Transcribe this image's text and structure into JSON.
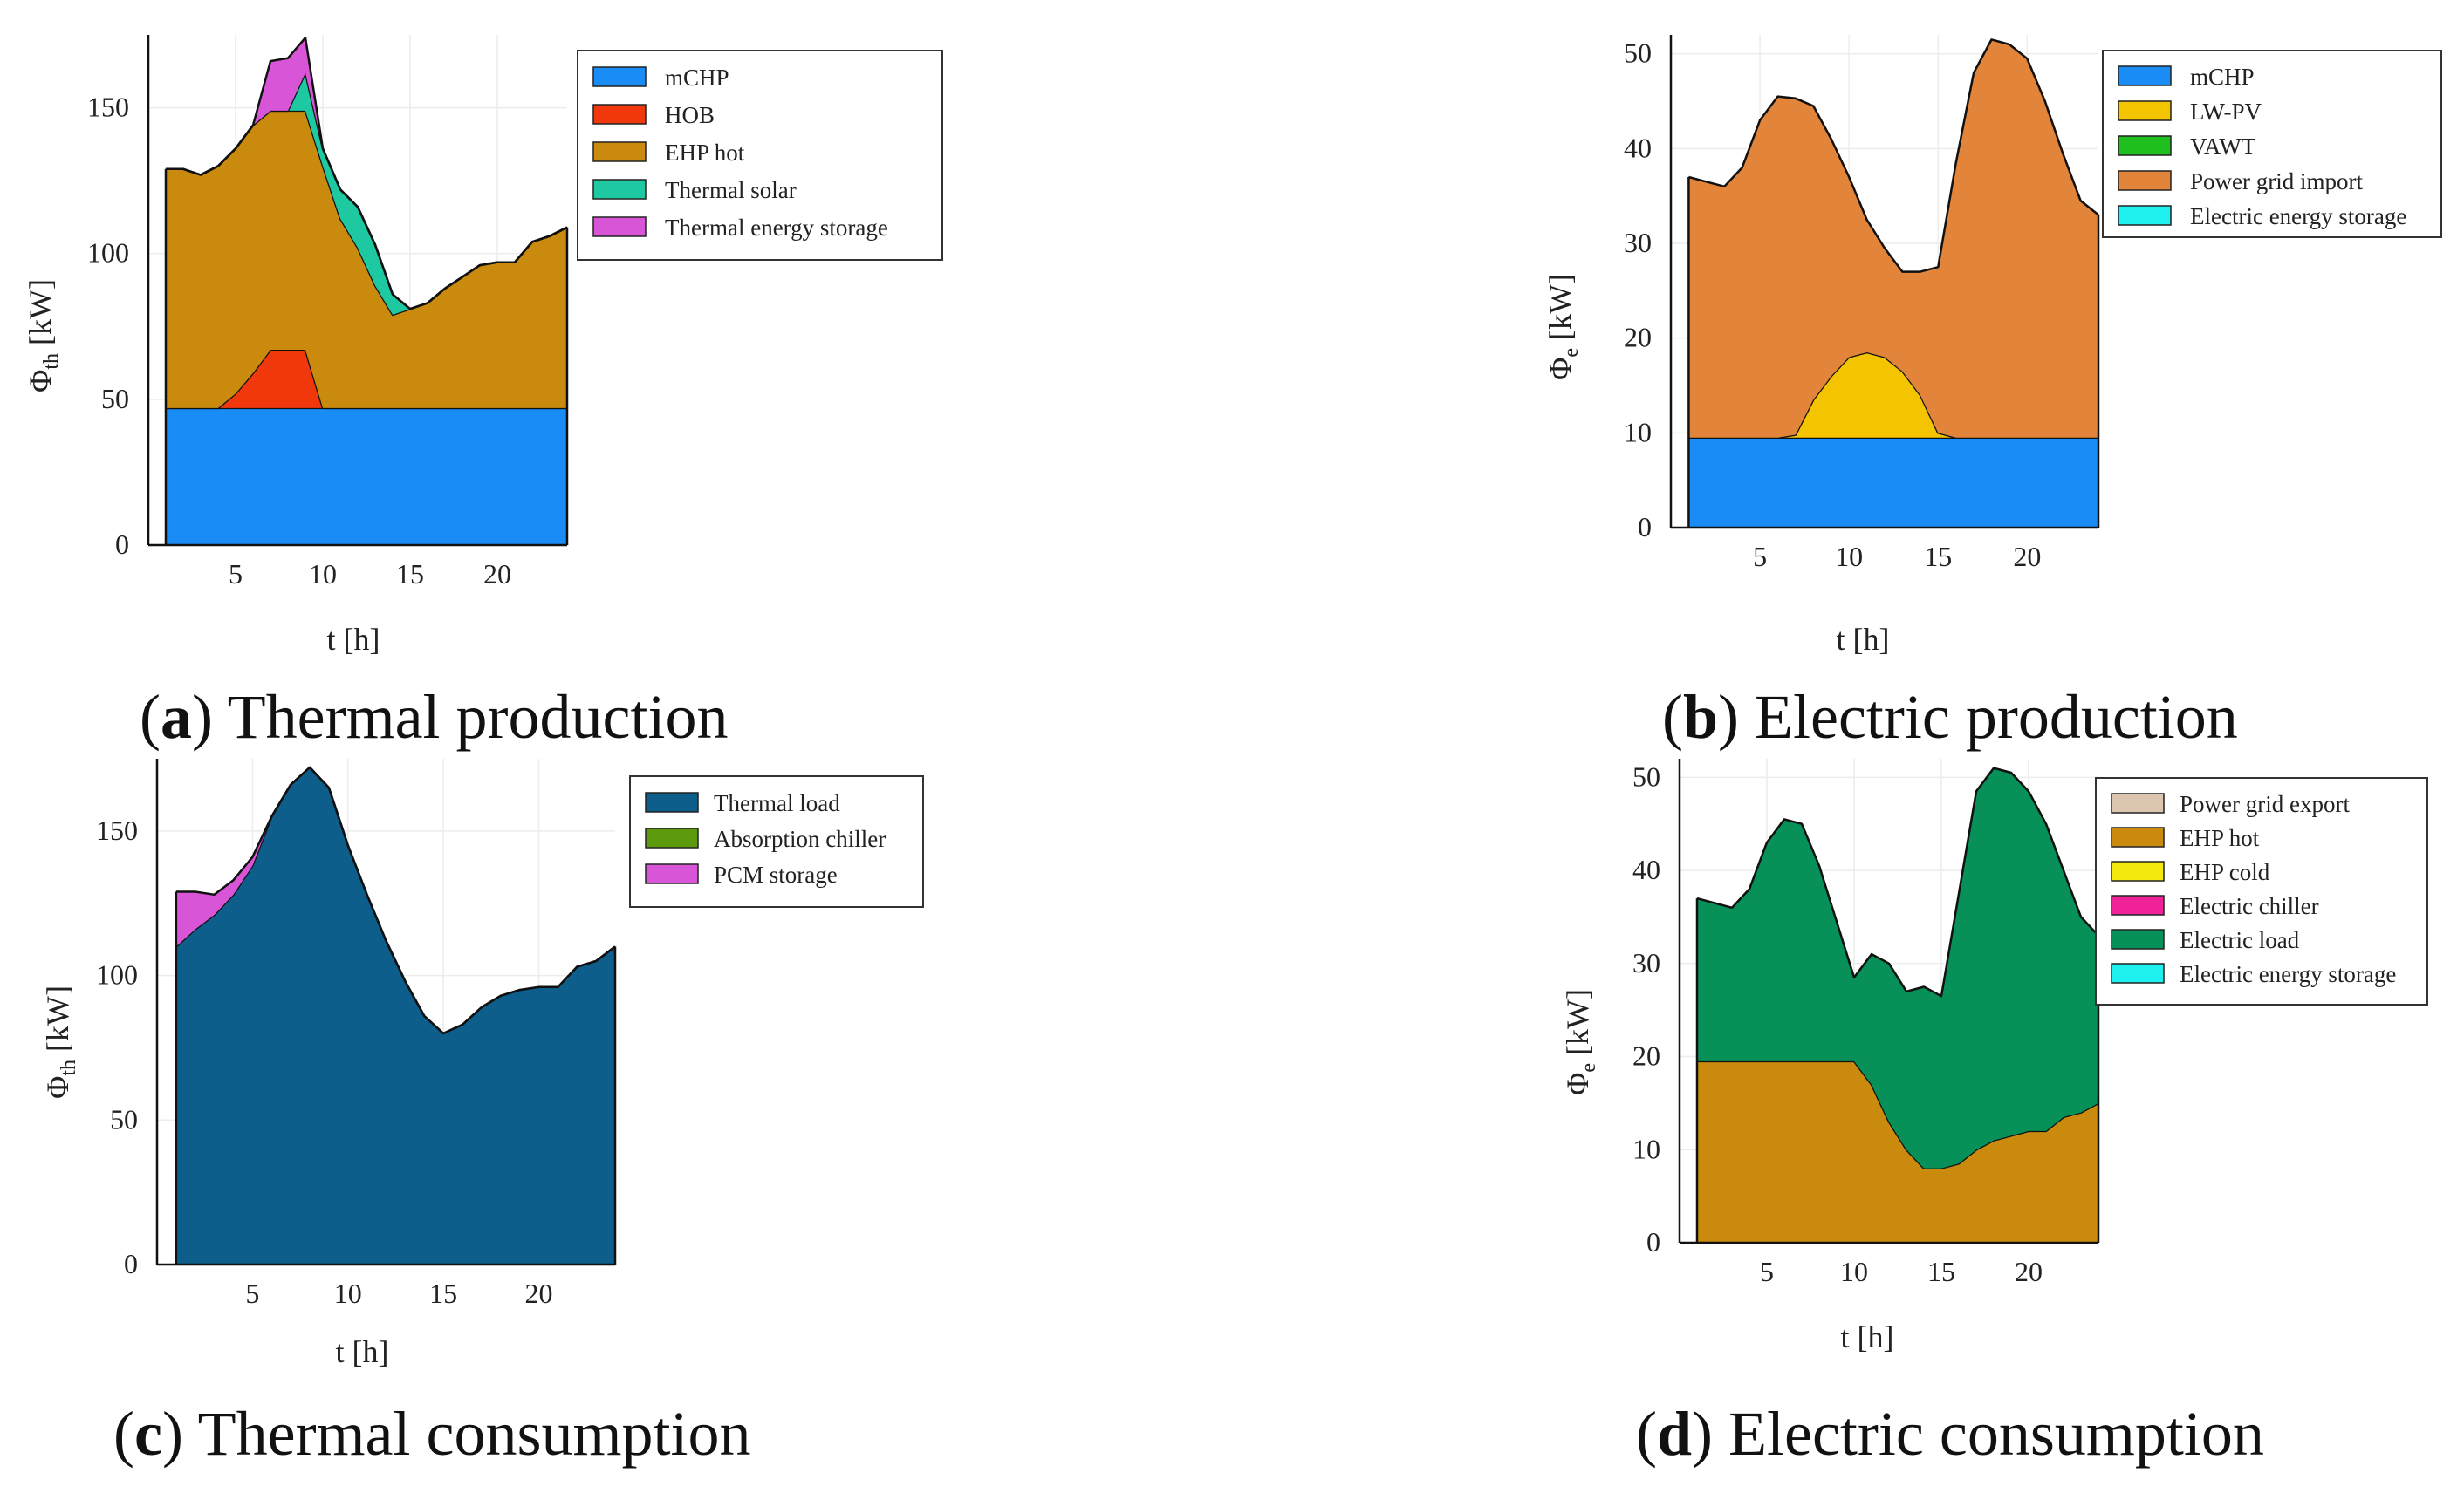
{
  "figure": {
    "panels": [
      "a",
      "b",
      "c",
      "d"
    ]
  },
  "chart_data": [
    {
      "id": "a",
      "type": "area",
      "caption_letter": "a",
      "caption_text": "Thermal production",
      "xlabel": "t [h]",
      "ylabel_main": "Φ",
      "ylabel_sub": "th",
      "ylabel_unit": " [kW]",
      "xlim": [
        0,
        24
      ],
      "ylim": [
        0,
        175
      ],
      "xticks": [
        "5",
        "10",
        "15",
        "20"
      ],
      "yticks": [
        "0",
        "50",
        "100",
        "150"
      ],
      "x": [
        1,
        2,
        3,
        4,
        5,
        6,
        7,
        8,
        9,
        10,
        11,
        12,
        13,
        14,
        15,
        16,
        17,
        18,
        19,
        20,
        21,
        22,
        23,
        24
      ],
      "series": [
        {
          "name": "mCHP",
          "color": "#1a8cf5",
          "values": [
            47,
            47,
            47,
            47,
            47,
            47,
            47,
            47,
            47,
            47,
            47,
            47,
            47,
            47,
            47,
            47,
            47,
            47,
            47,
            47,
            47,
            47,
            47,
            47
          ]
        },
        {
          "name": "HOB",
          "color": "#f0380c",
          "values": [
            0,
            0,
            0,
            0,
            5,
            12,
            20,
            20,
            20,
            0,
            0,
            0,
            0,
            0,
            0,
            0,
            0,
            0,
            0,
            0,
            0,
            0,
            0,
            0
          ]
        },
        {
          "name": "EHP hot",
          "color": "#c98a0e",
          "values": [
            82,
            82,
            80,
            83,
            84,
            85,
            82,
            82,
            82,
            83,
            65,
            55,
            42,
            32,
            34,
            36,
            41,
            45,
            49,
            50,
            50,
            57,
            59,
            62
          ]
        },
        {
          "name": "Thermal solar",
          "color": "#1ec8a0",
          "values": [
            0,
            0,
            0,
            0,
            0,
            0,
            0,
            0,
            13,
            6,
            10,
            14,
            14,
            7,
            0,
            0,
            0,
            0,
            0,
            0,
            0,
            0,
            0,
            0
          ]
        },
        {
          "name": "Thermal energy storage",
          "color": "#d855d8",
          "values": [
            0,
            0,
            0,
            0,
            0,
            0,
            17,
            18,
            12,
            0,
            0,
            0,
            0,
            0,
            0,
            0,
            0,
            0,
            0,
            0,
            0,
            0,
            0,
            0
          ]
        }
      ]
    },
    {
      "id": "b",
      "type": "area",
      "caption_letter": "b",
      "caption_text": "Electric production",
      "xlabel": "t [h]",
      "ylabel_main": "Φ",
      "ylabel_sub": "e",
      "ylabel_unit": " [kW]",
      "xlim": [
        0,
        24
      ],
      "ylim": [
        0,
        52
      ],
      "xticks": [
        "5",
        "10",
        "15",
        "20"
      ],
      "yticks": [
        "0",
        "10",
        "20",
        "30",
        "40",
        "50"
      ],
      "x": [
        1,
        2,
        3,
        4,
        5,
        6,
        7,
        8,
        9,
        10,
        11,
        12,
        13,
        14,
        15,
        16,
        17,
        18,
        19,
        20,
        21,
        22,
        23,
        24
      ],
      "series": [
        {
          "name": "mCHP",
          "color": "#1a8cf5",
          "values": [
            9.5,
            9.5,
            9.5,
            9.5,
            9.5,
            9.5,
            9.5,
            9.5,
            9.5,
            9.5,
            9.5,
            9.5,
            9.5,
            9.5,
            9.5,
            9.5,
            9.5,
            9.5,
            9.5,
            9.5,
            9.5,
            9.5,
            9.5,
            9.5
          ]
        },
        {
          "name": "LW-PV",
          "color": "#f5c400",
          "values": [
            0,
            0,
            0,
            0,
            0,
            0,
            0.3,
            4,
            6.5,
            8.5,
            9,
            8.5,
            7,
            4.5,
            0.5,
            0,
            0,
            0,
            0,
            0,
            0,
            0,
            0,
            0
          ]
        },
        {
          "name": "VAWT",
          "color": "#1fbf1f",
          "values": [
            0,
            0,
            0,
            0,
            0,
            0,
            0,
            0,
            0,
            0,
            0,
            0,
            0,
            0,
            0,
            0,
            0,
            0,
            0,
            0,
            0,
            0,
            0,
            0
          ]
        },
        {
          "name": "Power grid import",
          "color": "#e2853a",
          "values": [
            27.5,
            27,
            26.5,
            28.5,
            33.5,
            36,
            35.5,
            31,
            25,
            19,
            14,
            11.5,
            10.5,
            13,
            17.5,
            29,
            38.5,
            42,
            41.5,
            40,
            35.5,
            30,
            25,
            23.5
          ]
        },
        {
          "name": "Electric energy storage",
          "color": "#1ef0f0",
          "values": [
            0,
            0,
            0,
            0,
            0,
            0,
            0,
            0,
            0,
            0,
            0,
            0,
            0,
            0,
            0,
            0,
            0,
            0,
            0,
            0,
            0,
            0,
            0,
            0
          ]
        }
      ]
    },
    {
      "id": "c",
      "type": "area",
      "caption_letter": "c",
      "caption_text": "Thermal consumption",
      "xlabel": "t [h]",
      "ylabel_main": "Φ",
      "ylabel_sub": "th",
      "ylabel_unit": " [kW]",
      "xlim": [
        0,
        24
      ],
      "ylim": [
        0,
        175
      ],
      "xticks": [
        "5",
        "10",
        "15",
        "20"
      ],
      "yticks": [
        "0",
        "50",
        "100",
        "150"
      ],
      "x": [
        1,
        2,
        3,
        4,
        5,
        6,
        7,
        8,
        9,
        10,
        11,
        12,
        13,
        14,
        15,
        16,
        17,
        18,
        19,
        20,
        21,
        22,
        23,
        24
      ],
      "series": [
        {
          "name": "Thermal load",
          "color": "#0d5e8a",
          "values": [
            110,
            116,
            121,
            128,
            138,
            155,
            166,
            172,
            165,
            145,
            128,
            112,
            98,
            86,
            80,
            83,
            89,
            93,
            95,
            96,
            96,
            103,
            105,
            110
          ]
        },
        {
          "name": "Absorption chiller",
          "color": "#5e9a0e",
          "values": [
            0,
            0,
            0,
            0,
            0,
            0,
            0,
            0,
            0,
            0,
            0,
            0,
            0,
            0,
            0,
            0,
            0,
            0,
            0,
            0,
            0,
            0,
            0,
            0
          ]
        },
        {
          "name": "PCM storage",
          "color": "#d855d8",
          "values": [
            19,
            13,
            7,
            5,
            3,
            0,
            0,
            0,
            0,
            0,
            0,
            0,
            0,
            0,
            0,
            0,
            0,
            0,
            0,
            0,
            0,
            0,
            0,
            0
          ]
        }
      ]
    },
    {
      "id": "d",
      "type": "area",
      "caption_letter": "d",
      "caption_text": "Electric consumption",
      "xlabel": "t [h]",
      "ylabel_main": "Φ",
      "ylabel_sub": "e",
      "ylabel_unit": " [kW]",
      "xlim": [
        0,
        24
      ],
      "ylim": [
        0,
        52
      ],
      "xticks": [
        "5",
        "10",
        "15",
        "20"
      ],
      "yticks": [
        "0",
        "10",
        "20",
        "30",
        "40",
        "50"
      ],
      "x": [
        1,
        2,
        3,
        4,
        5,
        6,
        7,
        8,
        9,
        10,
        11,
        12,
        13,
        14,
        15,
        16,
        17,
        18,
        19,
        20,
        21,
        22,
        23,
        24
      ],
      "series": [
        {
          "name": "Power grid export",
          "color": "#dcc6b0",
          "values": [
            0,
            0,
            0,
            0,
            0,
            0,
            0,
            0,
            0,
            0,
            0,
            0,
            0,
            0,
            0,
            0,
            0,
            0,
            0,
            0,
            0,
            0,
            0,
            0
          ]
        },
        {
          "name": "EHP hot",
          "color": "#c98a0e",
          "values": [
            19.5,
            19.5,
            19.5,
            19.5,
            19.5,
            19.5,
            19.5,
            19.5,
            19.5,
            19.5,
            17,
            13,
            10,
            8,
            8,
            8.5,
            10,
            11,
            11.5,
            12,
            12,
            13.5,
            14,
            15
          ]
        },
        {
          "name": "EHP cold",
          "color": "#f5e80e",
          "values": [
            0,
            0,
            0,
            0,
            0,
            0,
            0,
            0,
            0,
            0,
            0,
            0,
            0,
            0,
            0,
            0,
            0,
            0,
            0,
            0,
            0,
            0,
            0,
            0
          ]
        },
        {
          "name": "Electric chiller",
          "color": "#f0229a",
          "values": [
            0,
            0,
            0,
            0,
            0,
            0,
            0,
            0,
            0,
            0,
            0,
            0,
            0,
            0,
            0,
            0,
            0,
            0,
            0,
            0,
            0,
            0,
            0,
            0
          ]
        },
        {
          "name": "Electric load",
          "color": "#079057",
          "values": [
            17.5,
            17,
            16.5,
            18.5,
            23.5,
            26,
            25.5,
            21,
            15,
            9,
            14,
            17,
            17,
            19.5,
            18.5,
            29,
            38.5,
            40,
            39,
            36.5,
            33,
            26.5,
            21,
            18
          ]
        },
        {
          "name": "Electric energy storage",
          "color": "#1ef0f0",
          "values": [
            0,
            0,
            0,
            0,
            0,
            0,
            0,
            0,
            0,
            0,
            0,
            0,
            0,
            0,
            0,
            0,
            0,
            0,
            0,
            0,
            0,
            0,
            0,
            0
          ]
        }
      ]
    }
  ]
}
